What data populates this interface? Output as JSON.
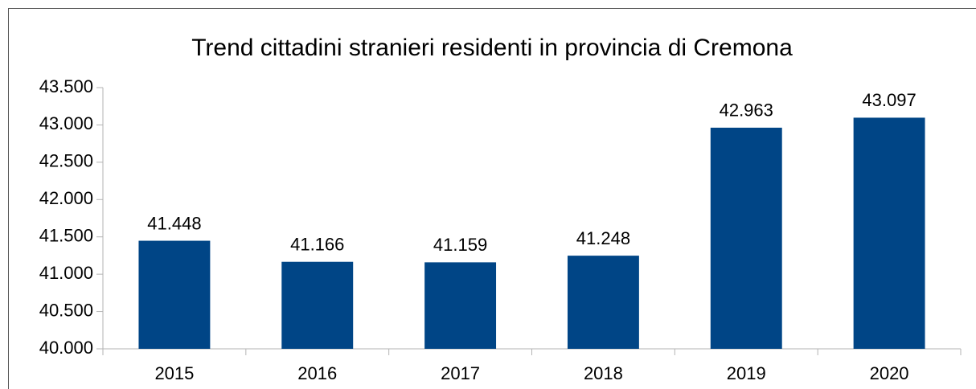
{
  "chart_data": {
    "type": "bar",
    "title": "Trend cittadini stranieri residenti in provincia di Cremona",
    "categories": [
      "2015",
      "2016",
      "2017",
      "2018",
      "2019",
      "2020"
    ],
    "values": [
      41448,
      41166,
      41159,
      41248,
      42963,
      43097
    ],
    "value_labels": [
      "41.448",
      "41.166",
      "41.159",
      "41.248",
      "42.963",
      "43.097"
    ],
    "color": "#004586",
    "ylim": [
      40000,
      43500
    ],
    "yticks": [
      {
        "value": 40000,
        "label": "40.000"
      },
      {
        "value": 40500,
        "label": "40.500"
      },
      {
        "value": 41000,
        "label": "41.000"
      },
      {
        "value": 41500,
        "label": "41.500"
      },
      {
        "value": 42000,
        "label": "42.000"
      },
      {
        "value": 42500,
        "label": "42.500"
      },
      {
        "value": 43000,
        "label": "43.000"
      },
      {
        "value": 43500,
        "label": "43.500"
      }
    ],
    "grid": false
  }
}
